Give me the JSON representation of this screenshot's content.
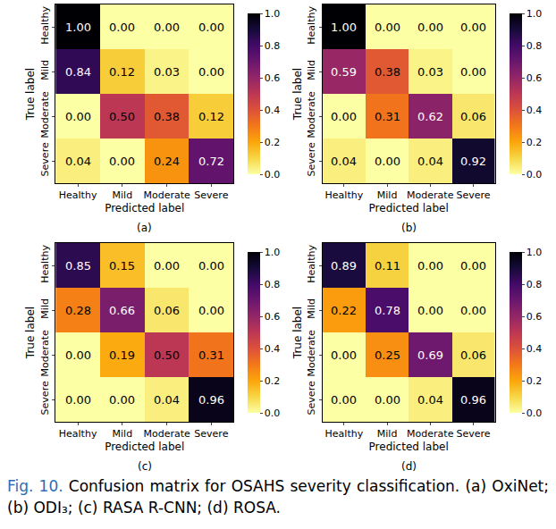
{
  "chart_data": [
    {
      "type": "heatmap",
      "title": "(a)",
      "x_label": "Predicted label",
      "y_label": "True label",
      "x": [
        "Healthy",
        "Mild",
        "Moderate",
        "Severe"
      ],
      "y": [
        "Healthy",
        "Mild",
        "Moderate",
        "Severe"
      ],
      "cells": [
        [
          1.0,
          0.0,
          0.0,
          0.0
        ],
        [
          0.84,
          0.12,
          0.03,
          0.0
        ],
        [
          0.0,
          0.5,
          0.38,
          0.12
        ],
        [
          0.04,
          0.0,
          0.24,
          0.72
        ]
      ],
      "cell_labels": [
        [
          "1.00",
          "0.00",
          "0.00",
          "0.00"
        ],
        [
          "0.84",
          "0.12",
          "0.03",
          "0.00"
        ],
        [
          "0.00",
          "0.50",
          "0.38",
          "0.12"
        ],
        [
          "0.04",
          "0.00",
          "0.24",
          "0.72"
        ]
      ],
      "data_labels": true,
      "colorbar_range": [
        0,
        1
      ],
      "colorbar_ticks": [
        {
          "value": 0,
          "label": "0.0"
        },
        {
          "value": 0.2,
          "label": "0.2"
        },
        {
          "value": 0.4,
          "label": "0.4"
        },
        {
          "value": 0.6,
          "label": "0.6"
        },
        {
          "value": 0.8,
          "label": "0.8"
        },
        {
          "value": 1,
          "label": "1.0"
        }
      ]
    },
    {
      "type": "heatmap",
      "title": "(b)",
      "x_label": "Predicted label",
      "y_label": "True label",
      "x": [
        "Healthy",
        "Mild",
        "Moderate",
        "Severe"
      ],
      "y": [
        "Healthy",
        "Mild",
        "Moderate",
        "Severe"
      ],
      "cells": [
        [
          1.0,
          0.0,
          0.0,
          0.0
        ],
        [
          0.59,
          0.38,
          0.03,
          0.0
        ],
        [
          0.0,
          0.31,
          0.62,
          0.06
        ],
        [
          0.04,
          0.0,
          0.04,
          0.92
        ]
      ],
      "cell_labels": [
        [
          "1.00",
          "0.00",
          "0.00",
          "0.00"
        ],
        [
          "0.59",
          "0.38",
          "0.03",
          "0.00"
        ],
        [
          "0.00",
          "0.31",
          "0.62",
          "0.06"
        ],
        [
          "0.04",
          "0.00",
          "0.04",
          "0.92"
        ]
      ],
      "data_labels": true,
      "colorbar_range": [
        0,
        1
      ],
      "colorbar_ticks": [
        {
          "value": 0,
          "label": "0.0"
        },
        {
          "value": 0.2,
          "label": "0.2"
        },
        {
          "value": 0.4,
          "label": "0.4"
        },
        {
          "value": 0.6,
          "label": "0.6"
        },
        {
          "value": 0.8,
          "label": "0.8"
        },
        {
          "value": 1,
          "label": "1.0"
        }
      ]
    },
    {
      "type": "heatmap",
      "title": "(c)",
      "x_label": "Predicted label",
      "y_label": "True label",
      "x": [
        "Healthy",
        "Mild",
        "Moderate",
        "Severe"
      ],
      "y": [
        "Healthy",
        "Mild",
        "Moderate",
        "Severe"
      ],
      "cells": [
        [
          0.85,
          0.15,
          0.0,
          0.0
        ],
        [
          0.28,
          0.66,
          0.06,
          0.0
        ],
        [
          0.0,
          0.19,
          0.5,
          0.31
        ],
        [
          0.0,
          0.0,
          0.04,
          0.96
        ]
      ],
      "cell_labels": [
        [
          "0.85",
          "0.15",
          "0.00",
          "0.00"
        ],
        [
          "0.28",
          "0.66",
          "0.06",
          "0.00"
        ],
        [
          "0.00",
          "0.19",
          "0.50",
          "0.31"
        ],
        [
          "0.00",
          "0.00",
          "0.04",
          "0.96"
        ]
      ],
      "data_labels": true,
      "colorbar_range": [
        0,
        1
      ],
      "colorbar_ticks": [
        {
          "value": 0,
          "label": "0.0"
        },
        {
          "value": 0.2,
          "label": "0.2"
        },
        {
          "value": 0.4,
          "label": "0.4"
        },
        {
          "value": 0.6,
          "label": "0.6"
        },
        {
          "value": 0.8,
          "label": "0.8"
        },
        {
          "value": 1,
          "label": "1.0"
        }
      ]
    },
    {
      "type": "heatmap",
      "title": "(d)",
      "x_label": "Predicted label",
      "y_label": "True label",
      "x": [
        "Healthy",
        "Mild",
        "Moderate",
        "Severe"
      ],
      "y": [
        "Healthy",
        "Mild",
        "Moderate",
        "Severe"
      ],
      "cells": [
        [
          0.89,
          0.11,
          0.0,
          0.0
        ],
        [
          0.22,
          0.78,
          0.0,
          0.0
        ],
        [
          0.0,
          0.25,
          0.69,
          0.06
        ],
        [
          0.0,
          0.0,
          0.04,
          0.96
        ]
      ],
      "cell_labels": [
        [
          "0.89",
          "0.11",
          "0.00",
          "0.00"
        ],
        [
          "0.22",
          "0.78",
          "0.00",
          "0.00"
        ],
        [
          "0.00",
          "0.25",
          "0.69",
          "0.06"
        ],
        [
          "0.00",
          "0.00",
          "0.04",
          "0.96"
        ]
      ],
      "data_labels": true,
      "colorbar_range": [
        0,
        1
      ],
      "colorbar_ticks": [
        {
          "value": 0,
          "label": "0.0"
        },
        {
          "value": 0.2,
          "label": "0.2"
        },
        {
          "value": 0.4,
          "label": "0.4"
        },
        {
          "value": 0.6,
          "label": "0.6"
        },
        {
          "value": 0.8,
          "label": "0.8"
        },
        {
          "value": 1,
          "label": "1.0"
        }
      ]
    }
  ],
  "caption": {
    "label": "Fig. 10.",
    "text": "Confusion matrix for OSAHS severity classification. (a) OxiNet; (b) ODI₃; (c) RASA R-CNN; (d) ROSA."
  }
}
